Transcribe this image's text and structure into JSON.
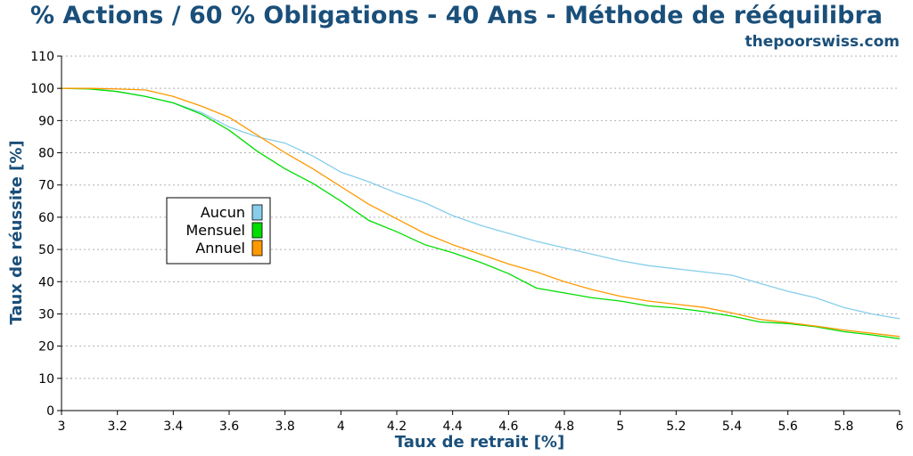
{
  "page": {
    "title": "% Actions / 60 % Obligations - 40 Ans - Méthode de rééquilibra",
    "subtitle": "thepoorswiss.com"
  },
  "colors": {
    "title": "#1a4f7a",
    "grid": "#b0b0b0",
    "Aucun": "#87ceeb",
    "Mensuel": "#00dd00",
    "Annuel": "#ff9900"
  },
  "chart_data": {
    "type": "line",
    "title": "% Actions / 60 % Obligations - 40 Ans - Méthode de rééquilibra",
    "subtitle": "thepoorswiss.com",
    "xlabel": "Taux de retrait [%]",
    "ylabel": "Taux de réussite [%]",
    "xlim": [
      3,
      6
    ],
    "ylim": [
      0,
      110
    ],
    "x_ticks": [
      3,
      3.2,
      3.4,
      3.6,
      3.8,
      4,
      4.2,
      4.4,
      4.6,
      4.8,
      5,
      5.2,
      5.4,
      5.6,
      5.8,
      6
    ],
    "x_tick_labels": [
      "3",
      "3.2",
      "3.4",
      "3.6",
      "3.8",
      "4",
      "4.2",
      "4.4",
      "4.6",
      "4.8",
      "5",
      "5.2",
      "5.4",
      "5.6",
      "5.8",
      "6"
    ],
    "y_ticks": [
      0,
      10,
      20,
      30,
      40,
      50,
      60,
      70,
      80,
      90,
      100,
      110
    ],
    "y_tick_labels": [
      "0",
      "10",
      "20",
      "30",
      "40",
      "50",
      "60",
      "70",
      "80",
      "90",
      "100",
      "110"
    ],
    "grid": true,
    "legend_position": "left",
    "x": [
      3,
      3.1,
      3.2,
      3.3,
      3.4,
      3.5,
      3.6,
      3.7,
      3.8,
      3.9,
      4,
      4.1,
      4.2,
      4.3,
      4.4,
      4.5,
      4.6,
      4.7,
      4.8,
      4.9,
      5,
      5.1,
      5.2,
      5.3,
      5.4,
      5.5,
      5.6,
      5.7,
      5.8,
      5.9,
      6
    ],
    "series": [
      {
        "name": "Aucun",
        "values": [
          100,
          100,
          99,
          97.5,
          95.5,
          92.5,
          88,
          85,
          83,
          79,
          74,
          71,
          67.5,
          64.5,
          60.5,
          57.5,
          55,
          52.5,
          50.5,
          48.5,
          46.5,
          45,
          44,
          43,
          42,
          39.5,
          37,
          35,
          32,
          30,
          28.5
        ]
      },
      {
        "name": "Mensuel",
        "values": [
          100,
          99.8,
          99,
          97.5,
          95.5,
          92,
          87,
          80.5,
          75,
          70.5,
          65,
          59,
          55.5,
          51.5,
          49,
          46,
          42.5,
          38,
          36.5,
          35,
          34,
          32.5,
          31.8,
          30.7,
          29.3,
          27.5,
          27,
          26,
          24.5,
          23.5,
          22.3
        ]
      },
      {
        "name": "Annuel",
        "values": [
          100,
          100,
          99.8,
          99.5,
          97.5,
          94.5,
          91,
          85.5,
          80,
          75,
          69.5,
          64,
          59.5,
          55,
          51.5,
          48.5,
          45.5,
          43,
          40,
          37.5,
          35.5,
          34,
          33,
          32,
          30.3,
          28.3,
          27.3,
          26.2,
          25,
          24,
          23
        ]
      }
    ]
  }
}
